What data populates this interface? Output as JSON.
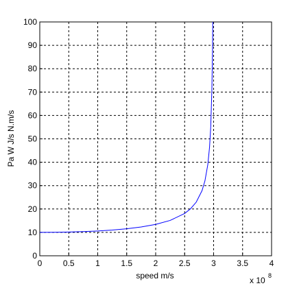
{
  "chart_data": {
    "type": "line",
    "xlabel": "speed m/s",
    "ylabel": "Pa  W  J/s  N.m/s",
    "x_multiplier": "x 10",
    "x_multiplier_exponent": "8",
    "x": [
      0,
      0.25,
      0.5,
      0.75,
      1,
      1.25,
      1.5,
      1.75,
      2,
      2.25,
      2.5,
      2.6,
      2.7,
      2.8,
      2.85,
      2.9,
      2.93,
      2.95,
      2.97,
      2.98,
      2.985
    ],
    "values": [
      10,
      10.03,
      10.14,
      10.33,
      10.61,
      11.0,
      11.55,
      12.31,
      13.42,
      15.12,
      18.09,
      20.05,
      22.94,
      27.85,
      32.03,
      39.03,
      46.5,
      55.0,
      70.9,
      86.7,
      100
    ],
    "color": "#0000ff",
    "xlim": [
      0,
      4
    ],
    "xticks": [
      0,
      0.5,
      1,
      1.5,
      2,
      2.5,
      3,
      3.5,
      4
    ],
    "ylim": [
      0,
      100
    ],
    "yticks": [
      0,
      10,
      20,
      30,
      40,
      50,
      60,
      70,
      80,
      90,
      100
    ],
    "grid": true
  }
}
